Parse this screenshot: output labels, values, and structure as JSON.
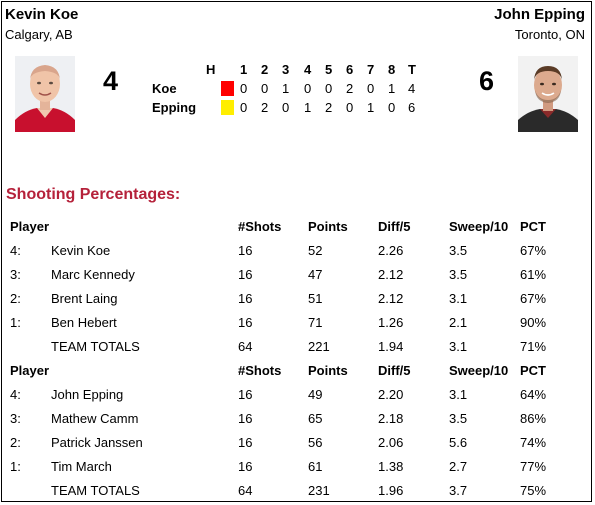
{
  "team1": {
    "name": "Kevin Koe",
    "location": "Calgary, AB",
    "score": "4",
    "short": "Koe",
    "hammer_color": "#ff0000"
  },
  "team2": {
    "name": "John Epping",
    "location": "Toronto, ON",
    "score": "6",
    "short": "Epping",
    "hammer_color": "#ffee00"
  },
  "linescore": {
    "hammer_label": "H",
    "headers": [
      "1",
      "2",
      "3",
      "4",
      "5",
      "6",
      "7",
      "8",
      "T"
    ],
    "team1": [
      "0",
      "0",
      "1",
      "0",
      "0",
      "2",
      "0",
      "1",
      "4"
    ],
    "team2": [
      "0",
      "2",
      "0",
      "1",
      "2",
      "0",
      "1",
      "0",
      "6"
    ]
  },
  "shooting": {
    "title": "Shooting Percentages:",
    "columns": {
      "player": "Player",
      "shots": "#Shots",
      "points": "Points",
      "diff": "Diff/5",
      "sweep": "Sweep/10",
      "pct": "PCT"
    },
    "team1_rows": [
      {
        "pos": "4:",
        "name": "Kevin Koe",
        "shots": "16",
        "points": "52",
        "diff": "2.26",
        "sweep": "3.5",
        "pct": "67%"
      },
      {
        "pos": "3:",
        "name": "Marc Kennedy",
        "shots": "16",
        "points": "47",
        "diff": "2.12",
        "sweep": "3.5",
        "pct": "61%"
      },
      {
        "pos": "2:",
        "name": "Brent Laing",
        "shots": "16",
        "points": "51",
        "diff": "2.12",
        "sweep": "3.1",
        "pct": "67%"
      },
      {
        "pos": "1:",
        "name": "Ben Hebert",
        "shots": "16",
        "points": "71",
        "diff": "1.26",
        "sweep": "2.1",
        "pct": "90%"
      },
      {
        "pos": "",
        "name": "TEAM TOTALS",
        "shots": "64",
        "points": "221",
        "diff": "1.94",
        "sweep": "3.1",
        "pct": "71%"
      }
    ],
    "team2_rows": [
      {
        "pos": "4:",
        "name": "John Epping",
        "shots": "16",
        "points": "49",
        "diff": "2.20",
        "sweep": "3.1",
        "pct": "64%"
      },
      {
        "pos": "3:",
        "name": "Mathew Camm",
        "shots": "16",
        "points": "65",
        "diff": "2.18",
        "sweep": "3.5",
        "pct": "86%"
      },
      {
        "pos": "2:",
        "name": "Patrick Janssen",
        "shots": "16",
        "points": "56",
        "diff": "2.06",
        "sweep": "5.6",
        "pct": "74%"
      },
      {
        "pos": "1:",
        "name": "Tim March",
        "shots": "16",
        "points": "61",
        "diff": "1.38",
        "sweep": "2.7",
        "pct": "77%"
      },
      {
        "pos": "",
        "name": "TEAM TOTALS",
        "shots": "64",
        "points": "231",
        "diff": "1.96",
        "sweep": "3.7",
        "pct": "75%"
      }
    ]
  }
}
